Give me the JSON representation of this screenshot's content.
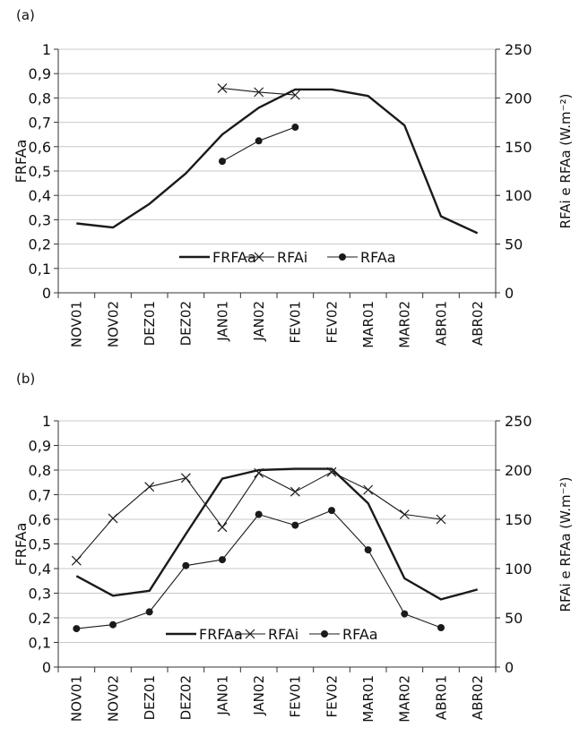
{
  "chart_data": [
    {
      "type": "line",
      "panel_label": "(a)",
      "categories": [
        "NOV01",
        "NOV02",
        "DEZ01",
        "DEZ02",
        "JAN01",
        "JAN02",
        "FEV01",
        "FEV02",
        "MAR01",
        "MAR02",
        "ABR01",
        "ABR02"
      ],
      "ylabel": "FRFAa",
      "y2label": "RFAi e RFAa (W.m⁻²)",
      "ylim": [
        0,
        1
      ],
      "y2lim": [
        0,
        250
      ],
      "yticks": [
        "0",
        "0,1",
        "0,2",
        "0,3",
        "0,4",
        "0,5",
        "0,6",
        "0,7",
        "0,8",
        "0,9",
        "1"
      ],
      "y2ticks": [
        "0",
        "50",
        "100",
        "150",
        "200",
        "250"
      ],
      "grid": true,
      "legend_position": "bottom-center",
      "series": [
        {
          "name": "FRFAa",
          "axis": "left",
          "marker": "none",
          "values": [
            0.285,
            0.268,
            0.365,
            0.49,
            0.65,
            0.76,
            0.835,
            0.835,
            0.808,
            0.687,
            0.314,
            0.245
          ]
        },
        {
          "name": "RFAi",
          "axis": "right",
          "marker": "x",
          "values": [
            null,
            null,
            null,
            null,
            210,
            206,
            203,
            null,
            null,
            null,
            null,
            null
          ]
        },
        {
          "name": "RFAa",
          "axis": "right",
          "marker": "dot",
          "values": [
            null,
            null,
            null,
            null,
            135,
            156,
            170,
            null,
            null,
            null,
            null,
            null
          ]
        }
      ],
      "colors": {
        "series": "#1a1a1a",
        "grid": "#c8c8c8",
        "axis": "#333333"
      }
    },
    {
      "type": "line",
      "panel_label": "(b)",
      "categories": [
        "NOV01",
        "NOV02",
        "DEZ01",
        "DEZ02",
        "JAN01",
        "JAN02",
        "FEV01",
        "FEV02",
        "MAR01",
        "MAR02",
        "ABR01",
        "ABR02"
      ],
      "ylabel": "FRFAa",
      "y2label": "RFAi e RFAa (W.m⁻²)",
      "ylim": [
        0,
        1
      ],
      "y2lim": [
        0,
        250
      ],
      "yticks": [
        "0",
        "0,1",
        "0,2",
        "0,3",
        "0,4",
        "0,5",
        "0,6",
        "0,7",
        "0,8",
        "0,9",
        "1"
      ],
      "y2ticks": [
        "0",
        "50",
        "100",
        "150",
        "200",
        "250"
      ],
      "grid": true,
      "legend_position": "bottom-center",
      "series": [
        {
          "name": "FRFAa",
          "axis": "left",
          "marker": "none",
          "values": [
            0.37,
            0.29,
            0.31,
            0.54,
            0.765,
            0.8,
            0.805,
            0.805,
            0.665,
            0.36,
            0.275,
            0.315
          ]
        },
        {
          "name": "RFAi",
          "axis": "right",
          "marker": "x",
          "values": [
            108,
            151,
            183,
            192,
            142,
            197,
            178,
            198,
            180,
            155,
            150,
            null
          ]
        },
        {
          "name": "RFAa",
          "axis": "right",
          "marker": "dot",
          "values": [
            39,
            43,
            56,
            103,
            109,
            155,
            144,
            159,
            119,
            54,
            40,
            null
          ]
        }
      ],
      "colors": {
        "series": "#1a1a1a",
        "grid": "#c8c8c8",
        "axis": "#333333"
      }
    }
  ]
}
